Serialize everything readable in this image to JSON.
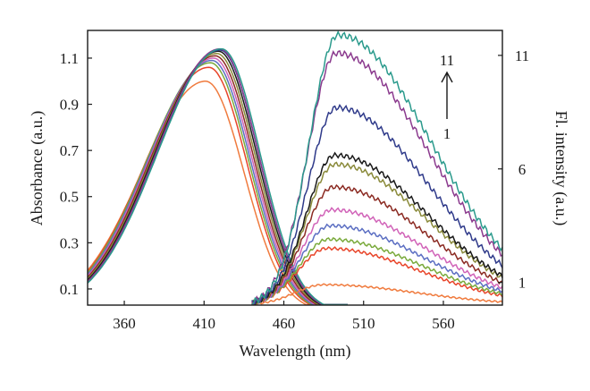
{
  "chart_data": {
    "type": "line",
    "xlabel": "Wavelength (nm)",
    "ylabel_left": "Absorbance (a.u.)",
    "ylabel_right": "Fl. intensity (a.u.)",
    "xlim": [
      337,
      597
    ],
    "ylim_left": [
      0.03,
      1.22
    ],
    "ylim_right": [
      0,
      12.1
    ],
    "x_ticks": [
      360,
      410,
      460,
      510,
      560
    ],
    "y_ticks_left": [
      0.1,
      0.3,
      0.5,
      0.7,
      0.9,
      1.1
    ],
    "y_ticks_right": [
      1,
      6,
      11
    ],
    "grid": false,
    "legend": "none",
    "annotation": {
      "top": "11",
      "bottom": "1",
      "arrow": "up"
    },
    "absorbance_series": [
      {
        "peak_nm": 411,
        "peak": 1.0,
        "color": "#f07b3e"
      },
      {
        "peak_nm": 413,
        "peak": 1.06,
        "color": "#e8452a"
      },
      {
        "peak_nm": 414,
        "peak": 1.08,
        "color": "#7aaa3c"
      },
      {
        "peak_nm": 415,
        "peak": 1.09,
        "color": "#5b6ec2"
      },
      {
        "peak_nm": 416,
        "peak": 1.1,
        "color": "#d163b8"
      },
      {
        "peak_nm": 417,
        "peak": 1.11,
        "color": "#8b2a22"
      },
      {
        "peak_nm": 418,
        "peak": 1.12,
        "color": "#8a8a3a"
      },
      {
        "peak_nm": 419,
        "peak": 1.13,
        "color": "#1a1a1a"
      },
      {
        "peak_nm": 420,
        "peak": 1.135,
        "color": "#2f3a8a"
      },
      {
        "peak_nm": 420,
        "peak": 1.14,
        "color": "#8b3a8e"
      },
      {
        "peak_nm": 421,
        "peak": 1.14,
        "color": "#2a9a8c"
      }
    ],
    "fluorescence_series": [
      {
        "peak_nm": 485,
        "peak": 0.9,
        "color": "#f07b3e"
      },
      {
        "peak_nm": 487,
        "peak": 2.5,
        "color": "#e8452a"
      },
      {
        "peak_nm": 488,
        "peak": 2.9,
        "color": "#7aaa3c"
      },
      {
        "peak_nm": 489,
        "peak": 3.5,
        "color": "#5b6ec2"
      },
      {
        "peak_nm": 490,
        "peak": 4.2,
        "color": "#d163b8"
      },
      {
        "peak_nm": 491,
        "peak": 5.2,
        "color": "#8b2a22"
      },
      {
        "peak_nm": 492,
        "peak": 6.2,
        "color": "#8a8a3a"
      },
      {
        "peak_nm": 492,
        "peak": 6.6,
        "color": "#1a1a1a"
      },
      {
        "peak_nm": 493,
        "peak": 8.7,
        "color": "#2f3a8a"
      },
      {
        "peak_nm": 493,
        "peak": 11.1,
        "color": "#8b3a8e"
      },
      {
        "peak_nm": 494,
        "peak": 11.9,
        "color": "#2a9a8c"
      }
    ]
  }
}
